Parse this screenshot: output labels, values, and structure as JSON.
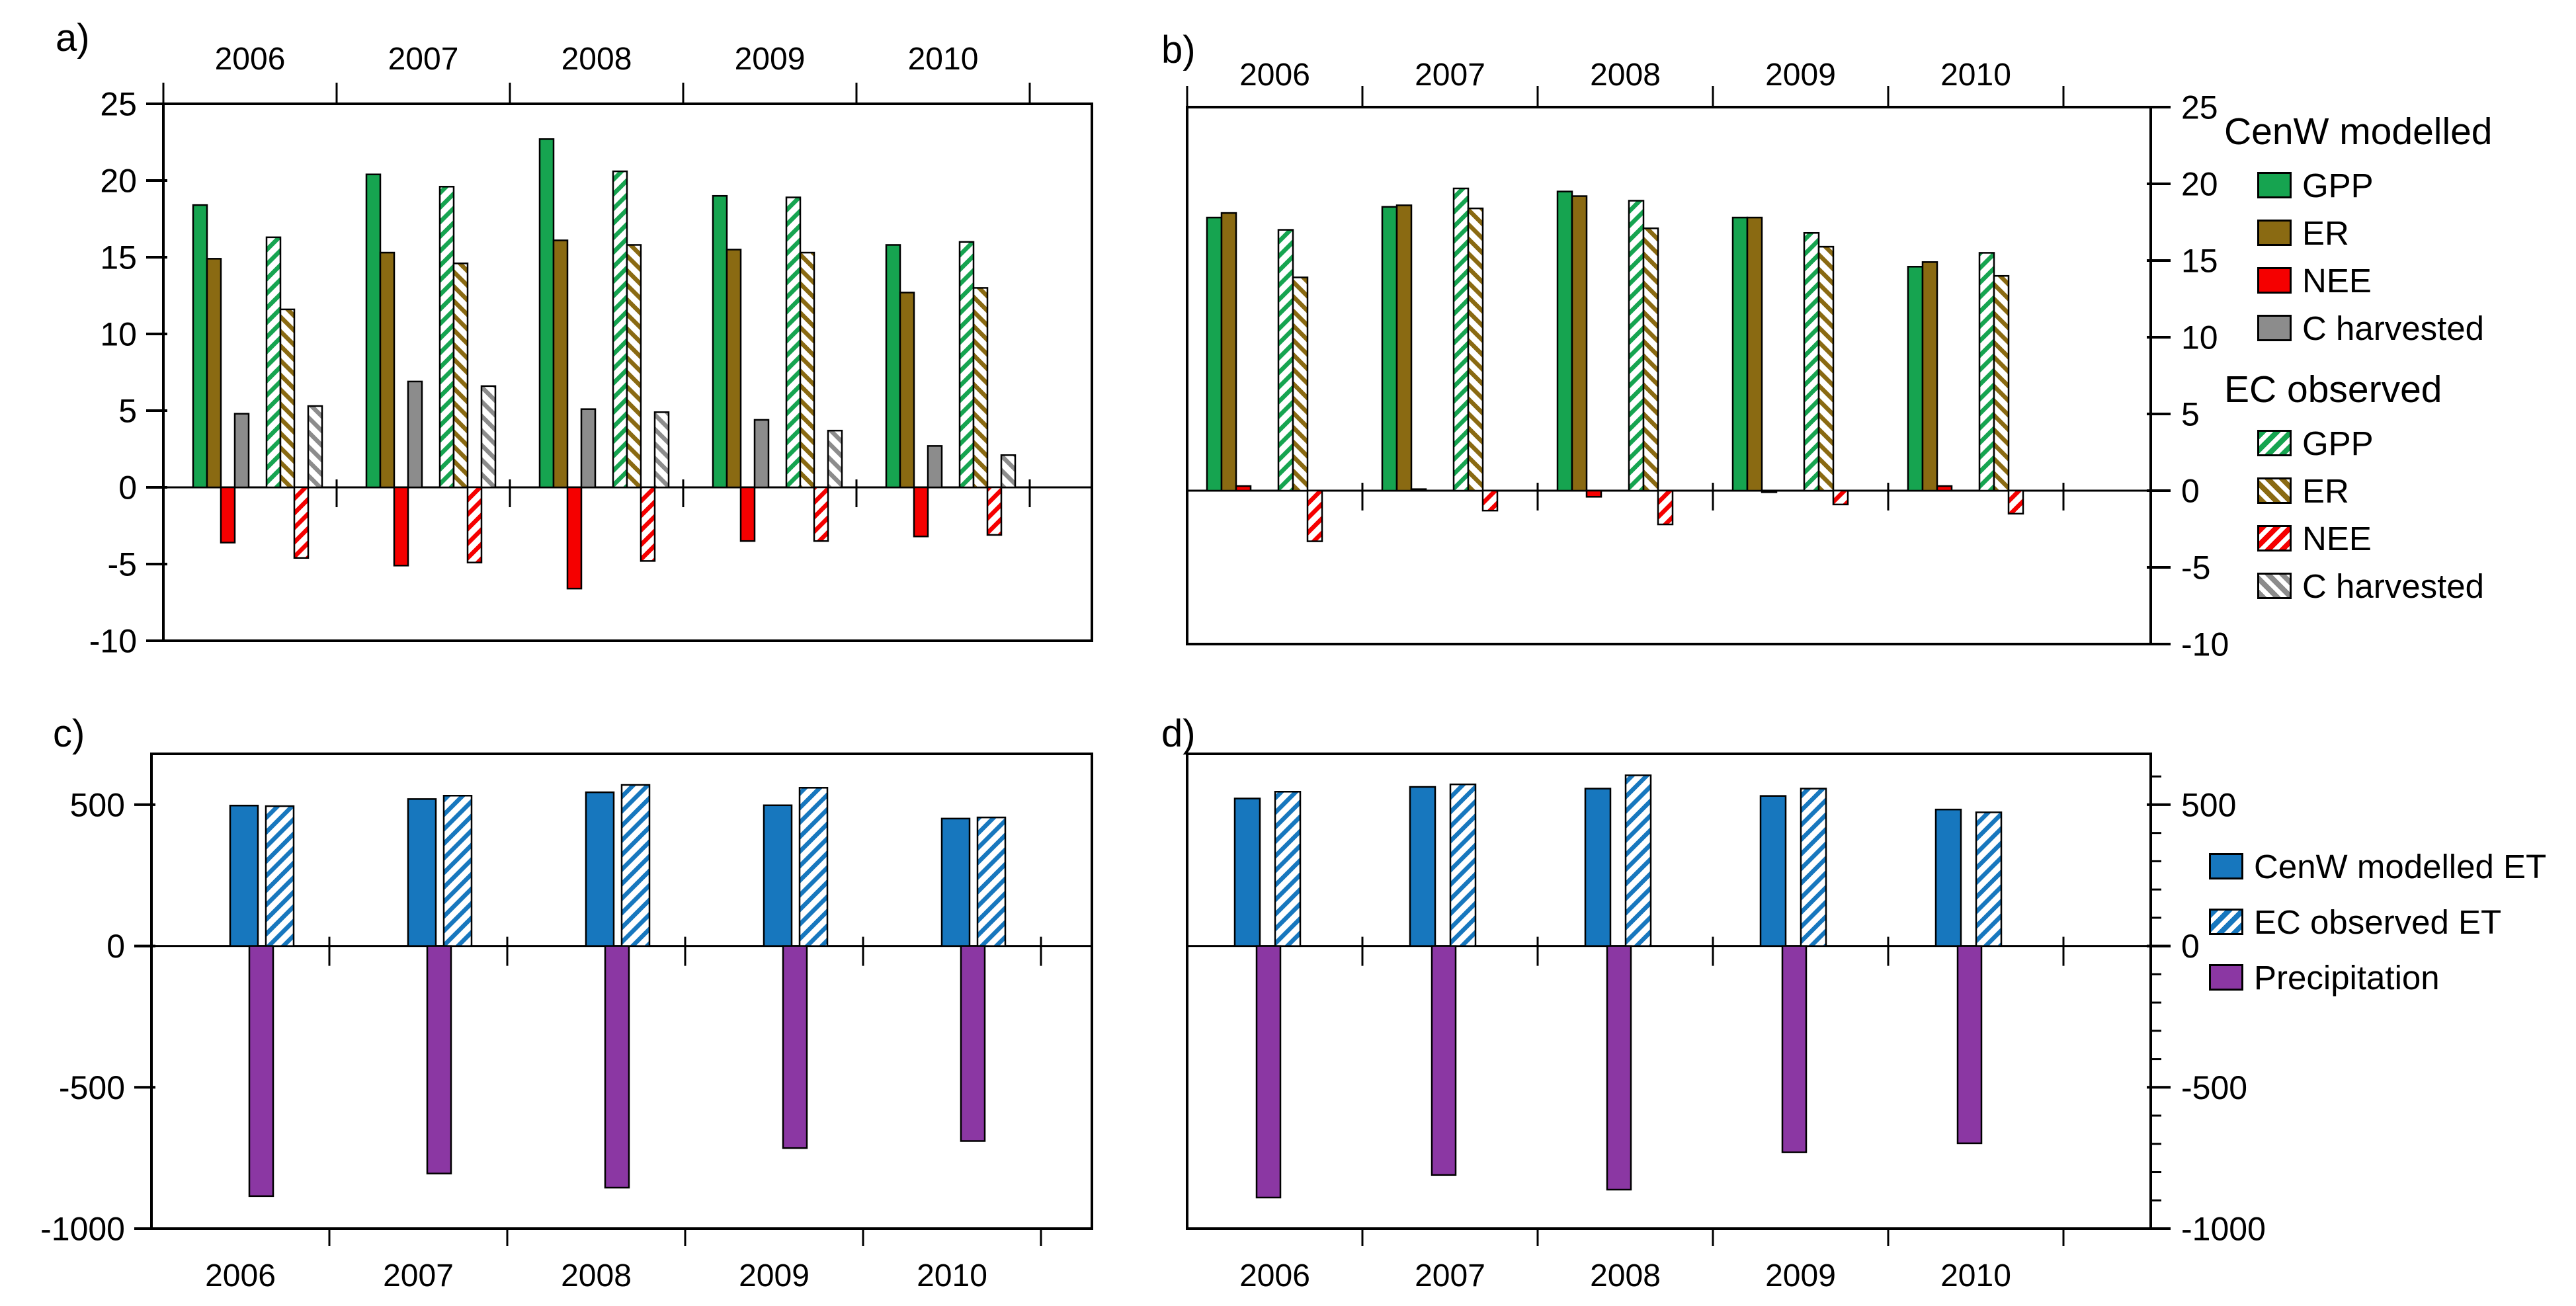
{
  "colors": {
    "gpp": "#16A450",
    "er": "#8A6A12",
    "nee": "#F50000",
    "charv": "#8C8C8C",
    "et": "#1777BE",
    "precip": "#8B37A3",
    "axis": "#000000",
    "background": "#FFFFFF"
  },
  "legends": {
    "modelled": {
      "title": "CenW modelled",
      "items": [
        {
          "label": "GPP",
          "color_key": "gpp",
          "hatched": false
        },
        {
          "label": "ER",
          "color_key": "er",
          "hatched": false
        },
        {
          "label": "NEE",
          "color_key": "nee",
          "hatched": false
        },
        {
          "label": "C harvested",
          "color_key": "charv",
          "hatched": false
        }
      ]
    },
    "observed": {
      "title": "EC observed",
      "items": [
        {
          "label": "GPP",
          "color_key": "gpp",
          "hatched": true
        },
        {
          "label": "ER",
          "color_key": "er",
          "hatched": true
        },
        {
          "label": "NEE",
          "color_key": "nee",
          "hatched": true
        },
        {
          "label": "C harvested",
          "color_key": "charv",
          "hatched": true
        }
      ]
    },
    "water": {
      "items": [
        {
          "label": "CenW modelled ET",
          "color_key": "et",
          "hatched": false
        },
        {
          "label": "EC observed ET",
          "color_key": "et",
          "hatched": true
        },
        {
          "label": "Precipitation",
          "color_key": "precip",
          "hatched": false
        }
      ]
    }
  },
  "chart_data": [
    {
      "type": "bar",
      "panel": "a)",
      "categories": [
        "2006",
        "2007",
        "2008",
        "2009",
        "2010"
      ],
      "ylim": [
        -10,
        25
      ],
      "yticks": [
        25,
        20,
        15,
        10,
        5,
        0,
        -5,
        -10
      ],
      "value_axis_side": "left",
      "category_axis": "top",
      "grid": false,
      "legend_position": "right",
      "series": [
        {
          "name": "CenW modelled GPP",
          "color_key": "gpp",
          "hatched": false,
          "values": [
            18.4,
            20.4,
            22.7,
            19.0,
            15.8
          ]
        },
        {
          "name": "CenW modelled ER",
          "color_key": "er",
          "hatched": false,
          "values": [
            14.9,
            15.3,
            16.1,
            15.5,
            12.7
          ]
        },
        {
          "name": "CenW modelled NEE",
          "color_key": "nee",
          "hatched": false,
          "values": [
            -3.6,
            -5.1,
            -6.6,
            -3.5,
            -3.2
          ]
        },
        {
          "name": "CenW modelled C harvested",
          "color_key": "charv",
          "hatched": false,
          "values": [
            4.8,
            6.9,
            5.1,
            4.4,
            2.7
          ]
        },
        {
          "name": "EC observed GPP",
          "color_key": "gpp",
          "hatched": true,
          "values": [
            16.3,
            19.6,
            20.6,
            18.9,
            16.0
          ]
        },
        {
          "name": "EC observed ER",
          "color_key": "er",
          "hatched": true,
          "values": [
            11.6,
            14.6,
            15.8,
            15.3,
            13.0
          ]
        },
        {
          "name": "EC observed NEE",
          "color_key": "nee",
          "hatched": true,
          "values": [
            -4.6,
            -4.9,
            -4.8,
            -3.5,
            -3.1
          ]
        },
        {
          "name": "EC observed C harvested",
          "color_key": "charv",
          "hatched": true,
          "values": [
            5.3,
            6.6,
            4.9,
            3.7,
            2.1
          ]
        }
      ]
    },
    {
      "type": "bar",
      "panel": "b)",
      "categories": [
        "2006",
        "2007",
        "2008",
        "2009",
        "2010"
      ],
      "ylim": [
        -10,
        25
      ],
      "yticks": [
        25,
        20,
        15,
        10,
        5,
        0,
        -5,
        -10
      ],
      "value_axis_side": "right",
      "category_axis": "top",
      "grid": false,
      "series": [
        {
          "name": "CenW modelled GPP",
          "color_key": "gpp",
          "hatched": false,
          "values": [
            17.8,
            18.5,
            19.5,
            17.8,
            14.6
          ]
        },
        {
          "name": "CenW modelled ER",
          "color_key": "er",
          "hatched": false,
          "values": [
            18.1,
            18.6,
            19.2,
            17.8,
            14.9
          ]
        },
        {
          "name": "CenW modelled NEE",
          "color_key": "nee",
          "hatched": false,
          "values": [
            0.3,
            0.1,
            -0.4,
            -0.1,
            0.3
          ]
        },
        {
          "name": "CenW modelled C harvested",
          "color_key": "charv",
          "hatched": false,
          "values": [
            0,
            0,
            0,
            0,
            0
          ]
        },
        {
          "name": "EC observed GPP",
          "color_key": "gpp",
          "hatched": true,
          "values": [
            17.0,
            19.7,
            18.9,
            16.8,
            15.5
          ]
        },
        {
          "name": "EC observed ER",
          "color_key": "er",
          "hatched": true,
          "values": [
            13.9,
            18.4,
            17.1,
            15.9,
            14.0
          ]
        },
        {
          "name": "EC observed NEE",
          "color_key": "nee",
          "hatched": true,
          "values": [
            -3.3,
            -1.3,
            -2.2,
            -0.9,
            -1.5
          ]
        },
        {
          "name": "EC observed C harvested",
          "color_key": "charv",
          "hatched": true,
          "values": [
            0,
            0,
            0,
            0,
            0
          ]
        }
      ]
    },
    {
      "type": "bar",
      "panel": "c)",
      "categories": [
        "2006",
        "2007",
        "2008",
        "2009",
        "2010"
      ],
      "ylim": [
        -1000,
        680
      ],
      "yticks": [
        500,
        0,
        -500,
        -1000
      ],
      "value_axis_side": "left",
      "category_axis": "bottom",
      "grid": false,
      "series": [
        {
          "name": "CenW modelled ET",
          "color_key": "et",
          "hatched": false,
          "values": [
            497,
            520,
            544,
            498,
            451
          ]
        },
        {
          "name": "EC observed ET",
          "color_key": "et",
          "hatched": true,
          "values": [
            495,
            532,
            570,
            560,
            455
          ]
        },
        {
          "name": "Precipitation",
          "color_key": "precip",
          "hatched": false,
          "values": [
            -885,
            -805,
            -855,
            -715,
            -690
          ]
        }
      ]
    },
    {
      "type": "bar",
      "panel": "d)",
      "categories": [
        "2006",
        "2007",
        "2008",
        "2009",
        "2010"
      ],
      "ylim": [
        -1000,
        680
      ],
      "yticks": [
        500,
        0,
        -500,
        -1000
      ],
      "yticks_minor_step": 100,
      "value_axis_side": "right",
      "category_axis": "bottom",
      "grid": false,
      "series": [
        {
          "name": "CenW modelled ET",
          "color_key": "et",
          "hatched": false,
          "values": [
            522,
            563,
            557,
            531,
            483
          ]
        },
        {
          "name": "EC observed ET",
          "color_key": "et",
          "hatched": true,
          "values": [
            546,
            572,
            604,
            557,
            473
          ]
        },
        {
          "name": "Precipitation",
          "color_key": "precip",
          "hatched": false,
          "values": [
            -890,
            -810,
            -862,
            -730,
            -698
          ]
        }
      ]
    }
  ]
}
